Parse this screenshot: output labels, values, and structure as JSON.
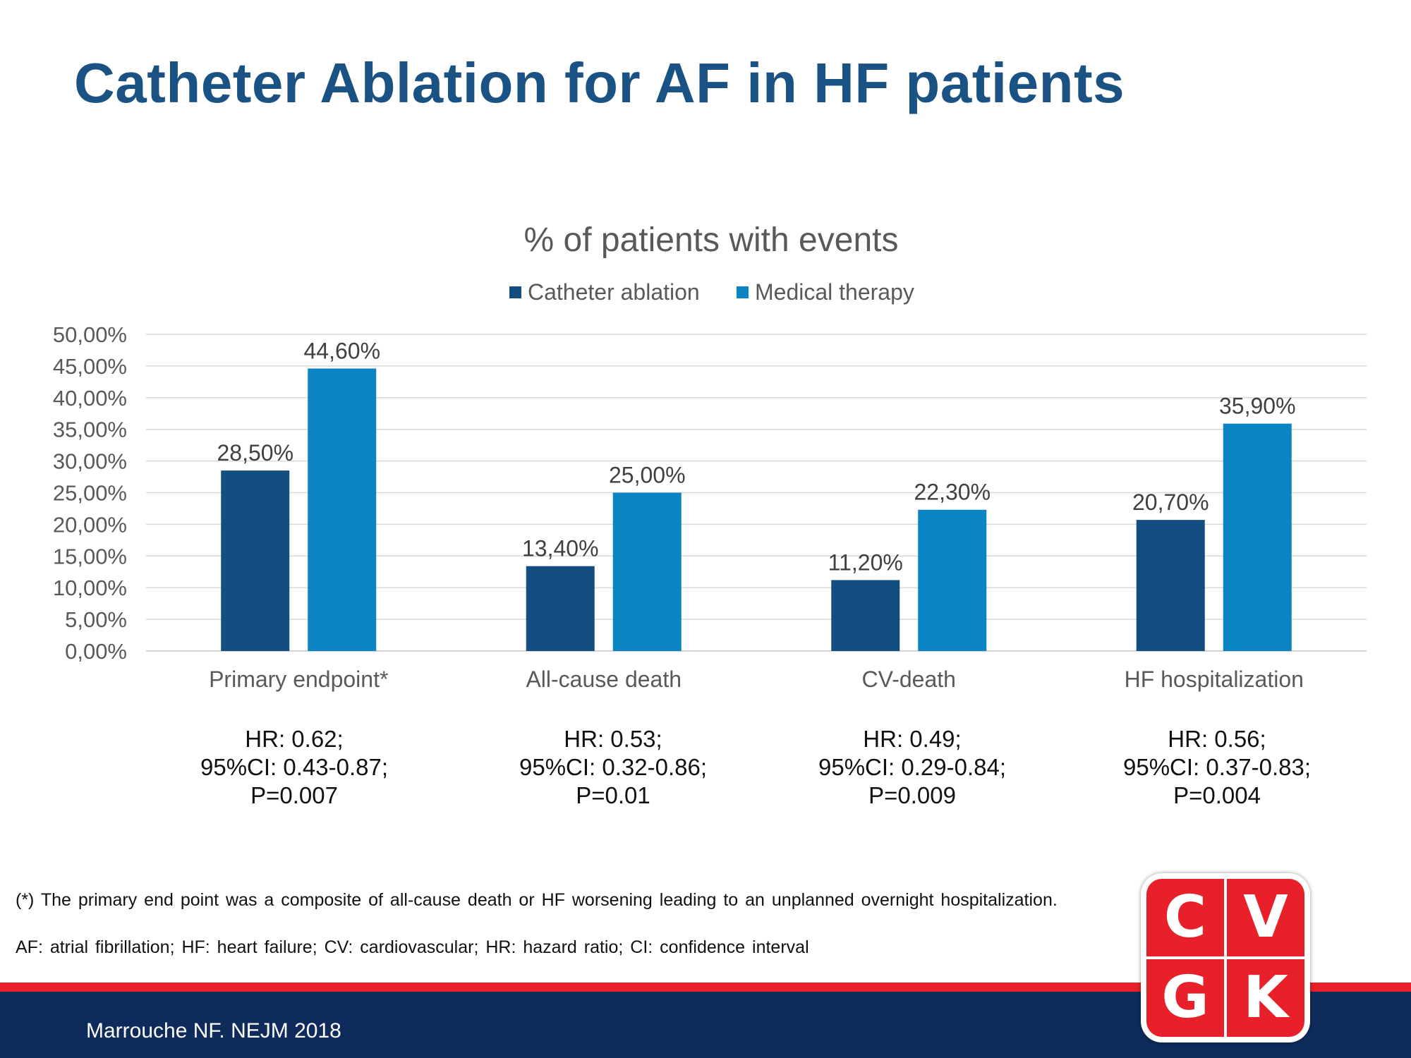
{
  "title": "Catheter Ablation for AF in HF patients",
  "chart_data": {
    "type": "bar",
    "title": "% of patients with events",
    "categories": [
      "Primary endpoint*",
      "All-cause death",
      "CV-death",
      "HF hospitalization"
    ],
    "series": [
      {
        "name": "Catheter ablation",
        "values": [
          28.5,
          13.4,
          11.2,
          20.7
        ],
        "labels": [
          "28,50%",
          "13,40%",
          "11,20%",
          "20,70%"
        ],
        "color": "#144d80"
      },
      {
        "name": "Medical therapy",
        "values": [
          44.6,
          25.0,
          22.3,
          35.9
        ],
        "labels": [
          "44,60%",
          "25,00%",
          "22,30%",
          "35,90%"
        ],
        "color": "#0a84c2"
      }
    ],
    "ylim": [
      0,
      50
    ],
    "yticks": [
      "0,00%",
      "5,00%",
      "10,00%",
      "15,00%",
      "20,00%",
      "25,00%",
      "30,00%",
      "35,00%",
      "40,00%",
      "45,00%",
      "50,00%"
    ],
    "grid": true,
    "legend_position": "top"
  },
  "stats": [
    {
      "hr": "HR: 0.62;",
      "ci": "95%CI: 0.43-0.87;",
      "p": "P=0.007"
    },
    {
      "hr": "HR: 0.53;",
      "ci": "95%CI: 0.32-0.86;",
      "p": "P=0.01"
    },
    {
      "hr": "HR: 0.49;",
      "ci": "95%CI: 0.29-0.84;",
      "p": "P=0.009"
    },
    {
      "hr": "HR: 0.56;",
      "ci": "95%CI: 0.37-0.83;",
      "p": "P=0.004"
    }
  ],
  "footnotes": {
    "primary": "(*) The primary end point was a composite of all-cause death or HF worsening leading to an unplanned overnight hospitalization.",
    "abbreviations": "AF: atrial fibrillation; HF: heart failure; CV: cardiovascular; HR: hazard ratio; CI: confidence interval"
  },
  "citation": "Marrouche NF. NEJM 2018",
  "logo": {
    "letters": [
      "C",
      "V",
      "G",
      "K"
    ]
  },
  "colors": {
    "title": "#1a5284",
    "red": "#e8202a",
    "navy": "#0e2b5c"
  }
}
